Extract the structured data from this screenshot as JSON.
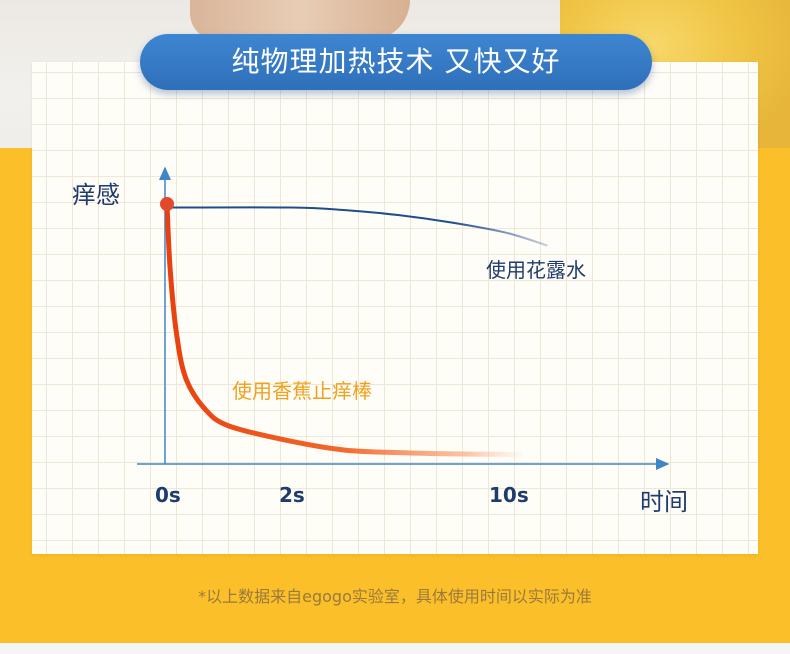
{
  "title": "纯物理加热技术 又快又好",
  "footnote": "*以上数据来自egogo实验室，具体使用时间以实际为准",
  "colors": {
    "series_a": "#1f4e8a",
    "series_b": "#f0551e",
    "axis": "#3f86c8",
    "pill": "#3479c4",
    "band": "#fbbf2a"
  },
  "chart_data": {
    "type": "line",
    "ylabel": "痒感",
    "xlabel": "时间",
    "x_ticks": [
      {
        "label": "0s",
        "value": 0
      },
      {
        "label": "2s",
        "value": 2
      },
      {
        "label": "10s",
        "value": 10
      }
    ],
    "series": [
      {
        "name": "使用花露水",
        "points": [
          [
            0,
            0.99
          ],
          [
            2,
            0.99
          ],
          [
            4,
            0.98
          ],
          [
            6,
            0.96
          ],
          [
            8,
            0.93
          ],
          [
            10,
            0.89
          ],
          [
            11.5,
            0.84
          ]
        ]
      },
      {
        "name": "使用香蕉止痒棒",
        "points": [
          [
            0,
            1.0
          ],
          [
            0.05,
            0.75
          ],
          [
            0.15,
            0.5
          ],
          [
            0.3,
            0.32
          ],
          [
            0.6,
            0.2
          ],
          [
            1.0,
            0.13
          ],
          [
            2,
            0.07
          ],
          [
            4,
            0.035
          ],
          [
            6,
            0.025
          ],
          [
            8,
            0.02
          ],
          [
            10,
            0.018
          ],
          [
            10.5,
            0.017
          ]
        ]
      }
    ],
    "start_marker": {
      "x": 0,
      "y": 1.0
    }
  }
}
